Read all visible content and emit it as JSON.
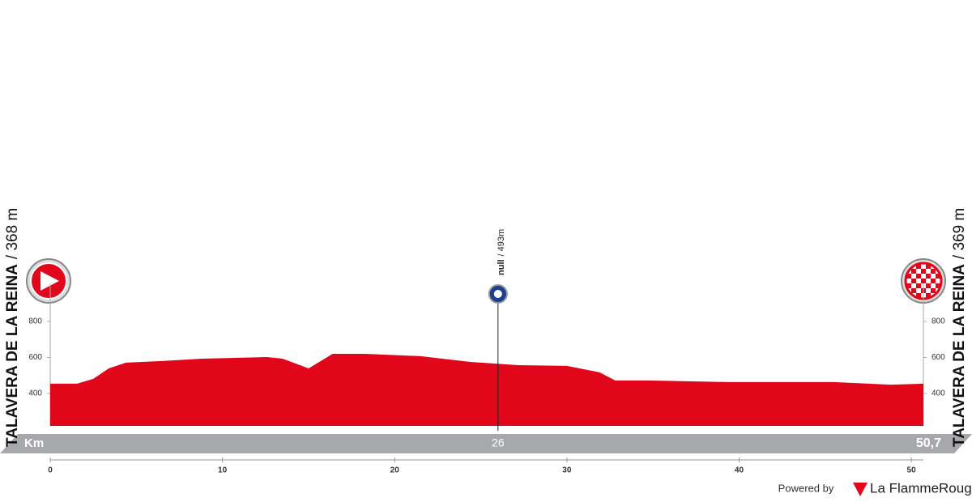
{
  "chart_data": {
    "type": "area",
    "x": [
      0,
      1.55,
      2.5,
      3.4,
      4.4,
      6.5,
      8.8,
      12.6,
      13.5,
      15,
      16.4,
      18.3,
      21.5,
      24.4,
      27.2,
      30,
      31.9,
      32.8,
      34.7,
      39.4,
      45.5,
      48.8,
      50.7
    ],
    "values": [
      454,
      454,
      481,
      539,
      571,
      580,
      593,
      602,
      593,
      539,
      620,
      620,
      607,
      575,
      557,
      553,
      517,
      472,
      472,
      463,
      463,
      449,
      454
    ],
    "color": "#e2061b",
    "xlim": [
      0,
      50.7
    ],
    "ylim": [
      220,
      1000
    ],
    "xticks": [
      0,
      10,
      20,
      30,
      40,
      50
    ],
    "yticks": [
      400,
      600,
      800
    ],
    "axis_label": "Km",
    "km_markers": [
      26,
      {
        "value": 50.7,
        "label": "50,7"
      }
    ],
    "start": {
      "name": "TALAVERA DE LA REINA",
      "altitude": "/ 368 m"
    },
    "finish": {
      "name": "TALAVERA DE LA REINA",
      "altitude": "/ 369 m"
    },
    "marker": {
      "km": 26,
      "name": "null",
      "altitude": "/ 493m"
    }
  },
  "footer": {
    "powered": "Powered by",
    "brand": "La FlammeRouge"
  }
}
